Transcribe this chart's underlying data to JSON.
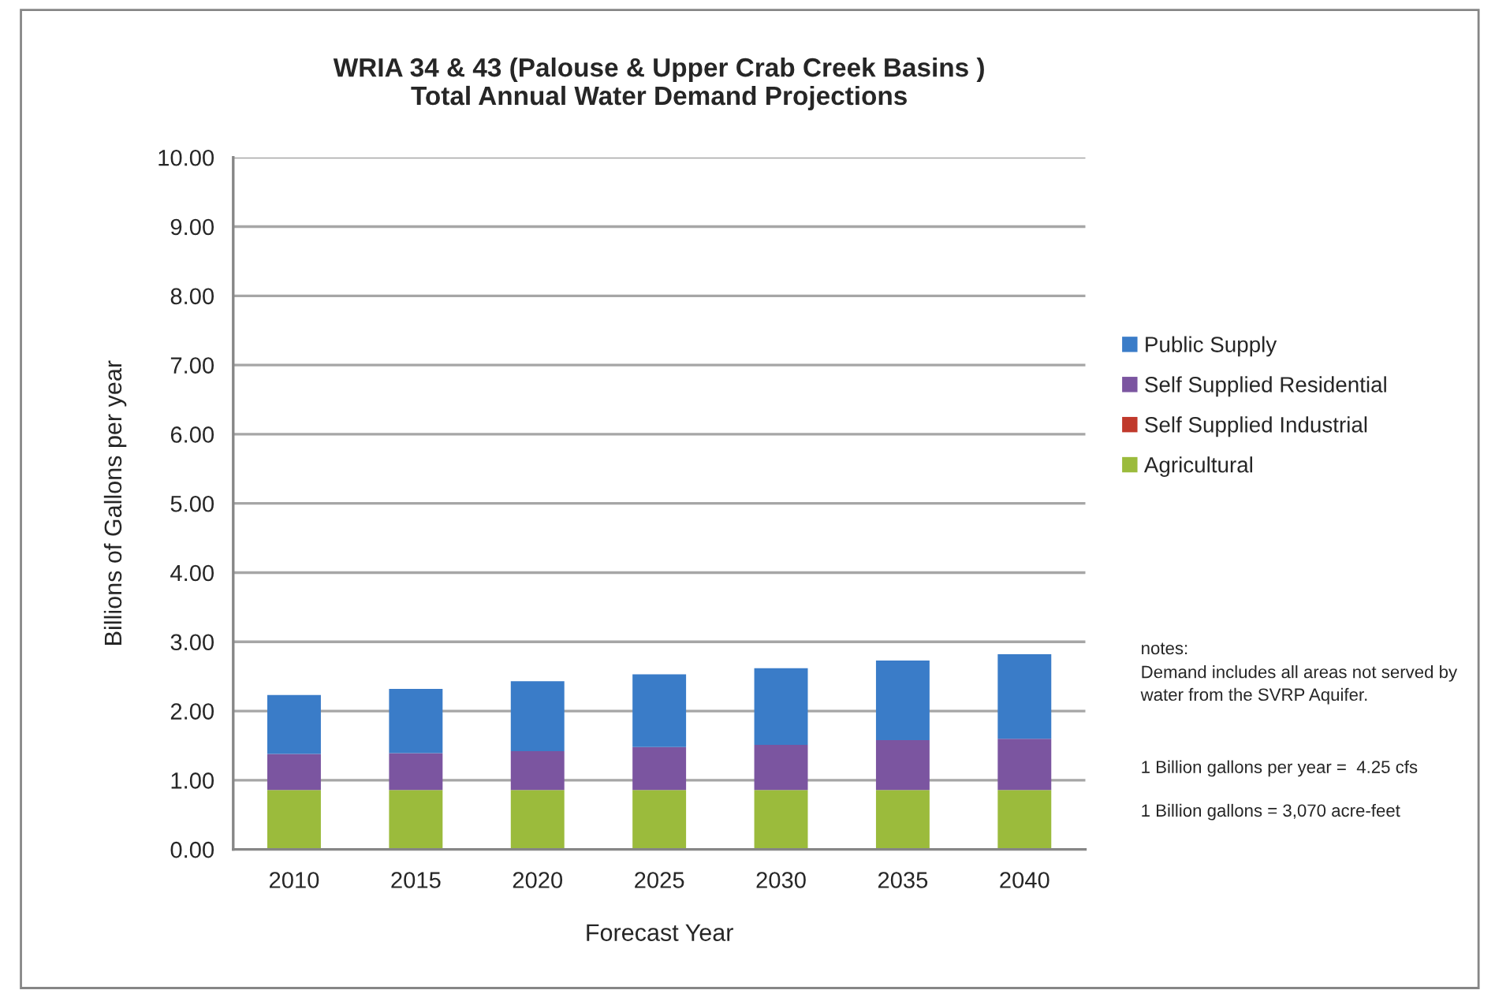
{
  "chart_data": {
    "type": "bar",
    "stacked": true,
    "title": "WRIA 34 & 43 (Palouse & Upper Crab Creek Basins )\nTotal Annual Water Demand Projections",
    "xlabel": "Forecast Year",
    "ylabel": "Billions of Gallons per year",
    "categories": [
      "2010",
      "2015",
      "2020",
      "2025",
      "2030",
      "2035",
      "2040"
    ],
    "series": [
      {
        "name": "Agricultural",
        "color": "#9bbb3c",
        "values": [
          0.86,
          0.86,
          0.86,
          0.86,
          0.86,
          0.86,
          0.86
        ]
      },
      {
        "name": "Self Supplied Industrial",
        "color": "#c0392b",
        "values": [
          0,
          0,
          0,
          0,
          0,
          0,
          0
        ]
      },
      {
        "name": "Self Supplied Residential",
        "color": "#7b55a0",
        "values": [
          0.52,
          0.53,
          0.56,
          0.62,
          0.65,
          0.72,
          0.74
        ]
      },
      {
        "name": "Public Supply",
        "color": "#3a7cc8",
        "values": [
          0.85,
          0.93,
          1.01,
          1.05,
          1.11,
          1.15,
          1.22
        ]
      }
    ],
    "ylim": [
      0,
      10
    ],
    "yticks": [
      {
        "value": 0,
        "label": "0.00"
      },
      {
        "value": 1,
        "label": "1.00"
      },
      {
        "value": 2,
        "label": "2.00"
      },
      {
        "value": 3,
        "label": "3.00"
      },
      {
        "value": 4,
        "label": "4.00"
      },
      {
        "value": 5,
        "label": "5.00"
      },
      {
        "value": 6,
        "label": "6.00"
      },
      {
        "value": 7,
        "label": "7.00"
      },
      {
        "value": 8,
        "label": "8.00"
      },
      {
        "value": 9,
        "label": "9.00"
      },
      {
        "value": 10,
        "label": "10.00"
      }
    ],
    "grid": "y",
    "legend": "right",
    "annotations": [
      "notes:",
      "Demand includes all areas not served by water from the SVRP Aquifer.",
      "1 Billion gallons per year =  4.25 cfs",
      "1 Billion gallons = 3,070 acre-feet"
    ]
  }
}
